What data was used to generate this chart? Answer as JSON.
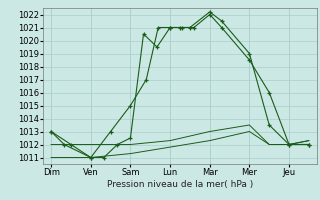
{
  "xlabel": "Pression niveau de la mer( hPa )",
  "ylim": [
    1010.5,
    1022.5
  ],
  "yticks": [
    1011,
    1012,
    1013,
    1014,
    1015,
    1016,
    1017,
    1018,
    1019,
    1020,
    1021,
    1022
  ],
  "x_labels": [
    "Dim",
    "Ven",
    "Sam",
    "Lun",
    "Mar",
    "Mer",
    "Jeu"
  ],
  "x_positions": [
    0,
    1,
    2,
    3,
    4,
    5,
    6
  ],
  "background_color": "#cce8e4",
  "grid_color": "#aacfcc",
  "line_color": "#1a5c1a",
  "line1_x": [
    0,
    0.33,
    1,
    1.5,
    2,
    2.4,
    2.7,
    3,
    3.3,
    3.6,
    4,
    4.3,
    5,
    5.5,
    6,
    6.5
  ],
  "line1_y": [
    1013,
    1012,
    1011,
    1013,
    1015,
    1017,
    1021,
    1021,
    1021,
    1021,
    1022,
    1021,
    1018.5,
    1016,
    1012,
    1012
  ],
  "line2_x": [
    0,
    0.5,
    1,
    1.33,
    1.67,
    2,
    2.33,
    2.67,
    3,
    3.25,
    3.5,
    4,
    4.3,
    5,
    5.5,
    6,
    6.5
  ],
  "line2_y": [
    1013,
    1012,
    1011,
    1011,
    1012,
    1012.5,
    1020.5,
    1019.5,
    1021,
    1021,
    1021,
    1022.2,
    1021.5,
    1019,
    1013.5,
    1012,
    1012
  ],
  "line3_x": [
    0,
    1,
    2,
    3,
    4,
    5,
    5.5,
    6,
    6.5
  ],
  "line3_y": [
    1012,
    1012,
    1012,
    1012.3,
    1013,
    1013.5,
    1012,
    1012,
    1012.3
  ],
  "line4_x": [
    0,
    1,
    2,
    3,
    4,
    5,
    5.5,
    6,
    6.5
  ],
  "line4_y": [
    1011,
    1011,
    1011.3,
    1011.8,
    1012.3,
    1013,
    1012,
    1012,
    1012.3
  ]
}
